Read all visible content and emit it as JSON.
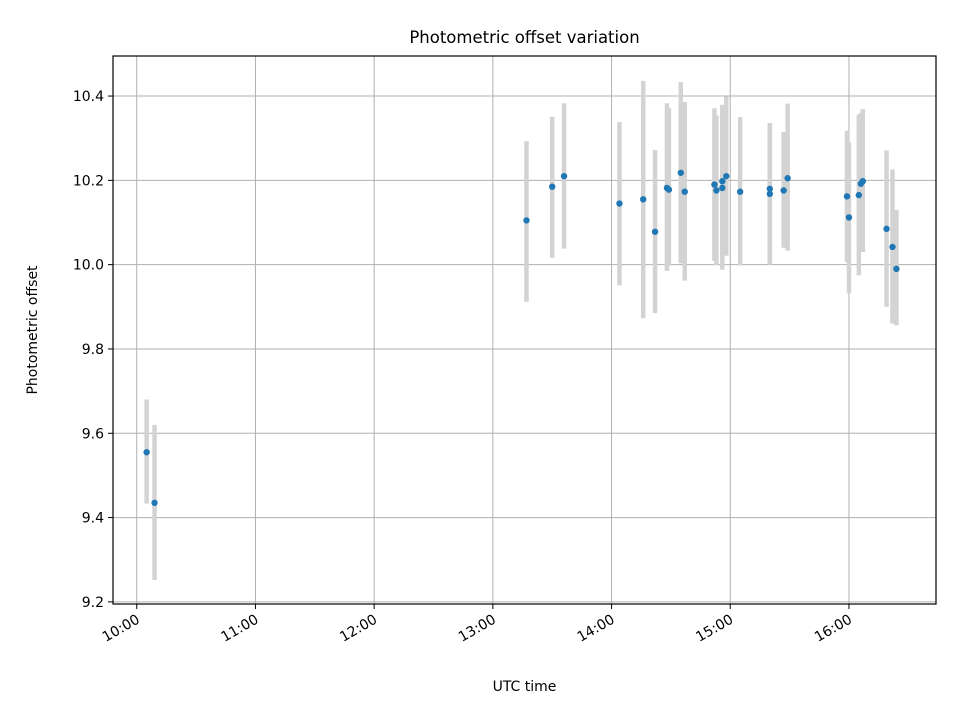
{
  "chart_data": {
    "type": "scatter",
    "title": "Photometric offset variation",
    "xlabel": "UTC time",
    "ylabel": "Photometric offset",
    "x_is_time": true,
    "xlim": [
      "09:48",
      "16:44"
    ],
    "ylim": [
      9.195,
      10.495
    ],
    "x_ticks": [
      "10:00",
      "11:00",
      "12:00",
      "13:00",
      "14:00",
      "15:00",
      "16:00"
    ],
    "y_ticks": [
      "9.2",
      "9.4",
      "9.6",
      "9.8",
      "10.0",
      "10.2",
      "10.4"
    ],
    "grid": true,
    "legend": "none",
    "colors": {
      "marker": "#1f77b4",
      "errorbar": "#d3d3d3",
      "grid": "#b0b0b0"
    },
    "points": [
      {
        "x": "10:05",
        "y": 9.555,
        "lo": 9.433,
        "hi": 9.68
      },
      {
        "x": "10:09",
        "y": 9.435,
        "lo": 9.252,
        "hi": 9.62
      },
      {
        "x": "13:17",
        "y": 10.105,
        "lo": 9.912,
        "hi": 10.293
      },
      {
        "x": "13:30",
        "y": 10.185,
        "lo": 10.016,
        "hi": 10.351
      },
      {
        "x": "13:36",
        "y": 10.21,
        "lo": 10.038,
        "hi": 10.383
      },
      {
        "x": "14:04",
        "y": 10.145,
        "lo": 9.951,
        "hi": 10.338
      },
      {
        "x": "14:16",
        "y": 10.155,
        "lo": 9.873,
        "hi": 10.436
      },
      {
        "x": "14:22",
        "y": 10.078,
        "lo": 9.885,
        "hi": 10.272
      },
      {
        "x": "14:28",
        "y": 10.182,
        "lo": 9.985,
        "hi": 10.383
      },
      {
        "x": "14:29",
        "y": 10.178,
        "lo": 9.998,
        "hi": 10.371
      },
      {
        "x": "14:35",
        "y": 10.218,
        "lo": 10.003,
        "hi": 10.433
      },
      {
        "x": "14:37",
        "y": 10.173,
        "lo": 9.962,
        "hi": 10.386
      },
      {
        "x": "14:52",
        "y": 10.19,
        "lo": 10.009,
        "hi": 10.371
      },
      {
        "x": "14:53",
        "y": 10.176,
        "lo": 9.999,
        "hi": 10.354
      },
      {
        "x": "14:56",
        "y": 10.198,
        "lo": 10.018,
        "hi": 10.379
      },
      {
        "x": "14:56",
        "y": 10.182,
        "lo": 9.988,
        "hi": 10.377
      },
      {
        "x": "14:58",
        "y": 10.21,
        "lo": 10.021,
        "hi": 10.399
      },
      {
        "x": "15:05",
        "y": 10.173,
        "lo": 9.998,
        "hi": 10.35
      },
      {
        "x": "15:20",
        "y": 10.18,
        "lo": 10.0,
        "hi": 10.336
      },
      {
        "x": "15:20",
        "y": 10.168,
        "lo": 10.0,
        "hi": 10.336
      },
      {
        "x": "15:27",
        "y": 10.176,
        "lo": 10.04,
        "hi": 10.315
      },
      {
        "x": "15:29",
        "y": 10.205,
        "lo": 10.033,
        "hi": 10.382
      },
      {
        "x": "15:59",
        "y": 10.162,
        "lo": 10.006,
        "hi": 10.318
      },
      {
        "x": "16:00",
        "y": 10.112,
        "lo": 9.933,
        "hi": 10.29
      },
      {
        "x": "16:05",
        "y": 10.165,
        "lo": 9.975,
        "hi": 10.356
      },
      {
        "x": "16:06",
        "y": 10.192,
        "lo": 10.03,
        "hi": 10.36
      },
      {
        "x": "16:07",
        "y": 10.198,
        "lo": 10.03,
        "hi": 10.369
      },
      {
        "x": "16:19",
        "y": 10.085,
        "lo": 9.9,
        "hi": 10.271
      },
      {
        "x": "16:22",
        "y": 10.042,
        "lo": 9.86,
        "hi": 10.226
      },
      {
        "x": "16:24",
        "y": 9.99,
        "lo": 9.856,
        "hi": 10.13
      }
    ]
  }
}
